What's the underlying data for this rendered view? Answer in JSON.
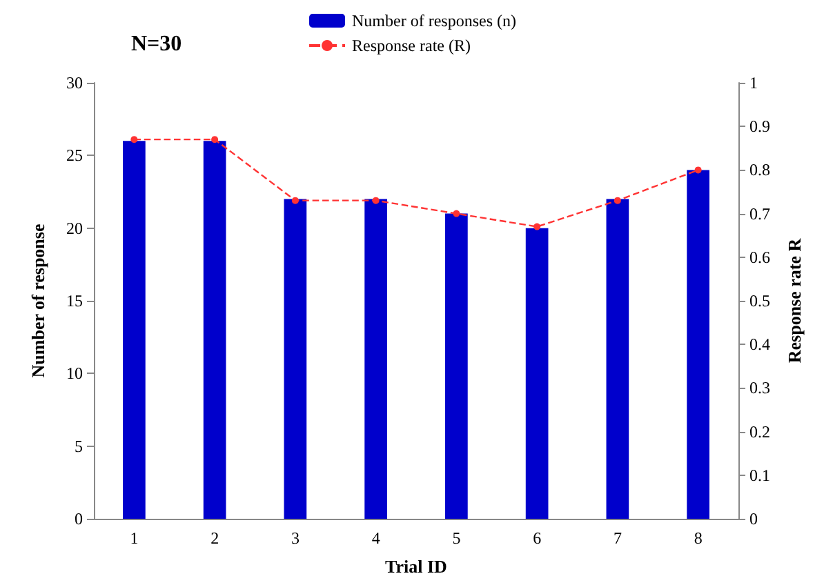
{
  "chart_data": {
    "type": "bar",
    "xlabel": "Trial ID",
    "ylabel": "Number of response",
    "y2label": "Response rate R",
    "annotations": [
      "N=30"
    ],
    "categories": [
      "1",
      "2",
      "3",
      "4",
      "5",
      "6",
      "7",
      "8"
    ],
    "series": [
      {
        "name": "Number of responses (n)",
        "color": "#0000cc",
        "values": [
          26,
          26,
          22,
          22,
          21,
          20,
          22,
          24
        ]
      },
      {
        "name": "Response rate (R)",
        "type": "line",
        "axis": "y2",
        "color": "#ff3333",
        "line_style": "dashed",
        "marker": "circle",
        "values": [
          0.87,
          0.87,
          0.73,
          0.73,
          0.7,
          0.67,
          0.73,
          0.8
        ]
      }
    ],
    "ylim": [
      0,
      30
    ],
    "yticks": [
      0,
      5,
      10,
      15,
      20,
      25,
      30
    ],
    "y2lim": [
      0,
      1
    ],
    "y2ticks": [
      0,
      0.1,
      0.2,
      0.3,
      0.4,
      0.5,
      0.6,
      0.7,
      0.8,
      0.9,
      1
    ],
    "grid": false,
    "legend": "top"
  }
}
